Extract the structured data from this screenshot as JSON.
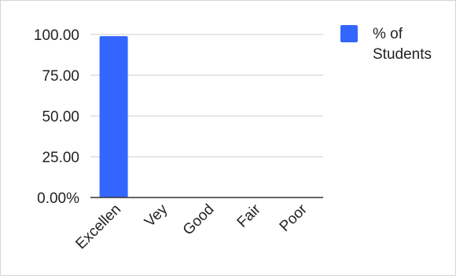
{
  "chart_data": {
    "type": "bar",
    "categories": [
      "Excellen",
      "Vey",
      "Good",
      "Fair",
      "Poor"
    ],
    "series": [
      {
        "name": "% of Students",
        "values": [
          99,
          0,
          0,
          0,
          0
        ],
        "color": "#3366ff"
      }
    ],
    "y_tick_labels": [
      "0.00%",
      "25.00",
      "50.00",
      "75.00",
      "100.00"
    ],
    "y_ticks": [
      0,
      25,
      50,
      75,
      100
    ],
    "ylim": [
      0,
      100
    ],
    "grid": true,
    "legend": {
      "position": "right",
      "lines": [
        "% of",
        "Students"
      ]
    }
  }
}
